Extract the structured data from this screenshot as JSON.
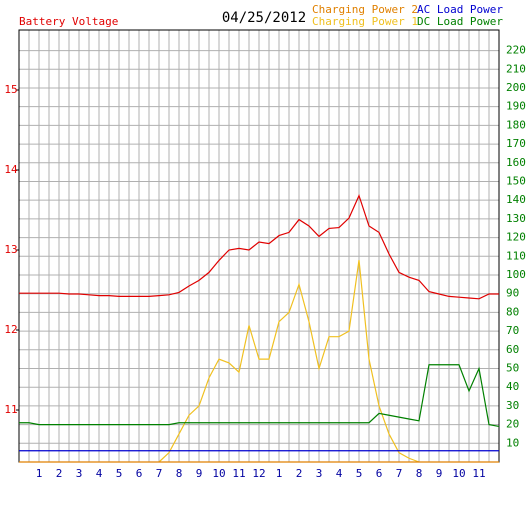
{
  "chart_data": {
    "type": "line",
    "title": "04/25/2012",
    "y_label": "Battery Voltage",
    "x": [
      0,
      0.5,
      1,
      1.5,
      2,
      2.5,
      3,
      3.5,
      4,
      4.5,
      5,
      5.5,
      6,
      6.5,
      7,
      7.5,
      8,
      8.5,
      9,
      9.5,
      10,
      10.5,
      11,
      11.5,
      12,
      12.5,
      13,
      13.5,
      14,
      14.5,
      15,
      15.5,
      16,
      16.5,
      17,
      17.5,
      18,
      18.5,
      19,
      19.5,
      20,
      20.5,
      21,
      21.5,
      22,
      22.5,
      23,
      23.5,
      24
    ],
    "xlim": [
      0,
      24
    ],
    "xticks": [
      1,
      2,
      3,
      4,
      5,
      6,
      7,
      8,
      9,
      10,
      11,
      12,
      {
        "value": 13,
        "label": "1"
      },
      {
        "value": 14,
        "label": "2"
      },
      {
        "value": 15,
        "label": "3"
      },
      {
        "value": 16,
        "label": "4"
      },
      {
        "value": 17,
        "label": "5"
      },
      {
        "value": 18,
        "label": "6"
      },
      {
        "value": 19,
        "label": "7"
      },
      {
        "value": 20,
        "label": "8"
      },
      {
        "value": 21,
        "label": "9"
      },
      {
        "value": 22,
        "label": "10"
      },
      {
        "value": 23,
        "label": "11"
      }
    ],
    "ylim": [
      10.35,
      15.75
    ],
    "yticks": [
      11,
      12,
      13,
      14,
      15
    ],
    "y2lim": [
      0,
      231
    ],
    "y2ticks": [
      10,
      20,
      30,
      40,
      50,
      60,
      70,
      80,
      90,
      100,
      110,
      120,
      130,
      140,
      150,
      160,
      170,
      180,
      190,
      200,
      210,
      220
    ],
    "grid": true,
    "series": [
      {
        "name": "Battery Voltage",
        "color": "#e00000",
        "axis": "y",
        "values": [
          12.46,
          12.46,
          12.46,
          12.46,
          12.46,
          12.45,
          12.45,
          12.44,
          12.43,
          12.43,
          12.42,
          12.42,
          12.42,
          12.42,
          12.43,
          12.44,
          12.47,
          12.55,
          12.62,
          12.72,
          12.87,
          13.0,
          13.02,
          13.0,
          13.1,
          13.08,
          13.18,
          13.22,
          13.38,
          13.3,
          13.17,
          13.27,
          13.28,
          13.4,
          13.68,
          13.3,
          13.22,
          12.95,
          12.72,
          12.66,
          12.62,
          12.48,
          12.45,
          12.42,
          12.41,
          12.4,
          12.39,
          12.45,
          12.45
        ]
      },
      {
        "name": "Charging Power 1",
        "color": "#f0c020",
        "axis": "y2",
        "values": [
          null,
          null,
          null,
          null,
          null,
          null,
          null,
          null,
          null,
          null,
          null,
          null,
          null,
          null,
          0,
          5,
          15,
          25,
          30,
          45,
          55,
          53,
          48,
          73,
          55,
          55,
          75,
          80,
          95,
          75,
          50,
          67,
          67,
          70,
          108,
          55,
          30,
          15,
          5,
          2,
          0,
          null,
          null,
          null,
          null,
          null,
          null,
          null,
          null
        ]
      },
      {
        "name": "Charging Power 2",
        "color": "#e08000",
        "axis": "y2",
        "values": [
          0,
          0,
          0,
          0,
          0,
          0,
          0,
          0,
          0,
          0,
          0,
          0,
          0,
          0,
          0,
          0,
          0,
          0,
          0,
          0,
          0,
          0,
          0,
          0,
          0,
          0,
          0,
          0,
          0,
          0,
          0,
          0,
          0,
          0,
          0,
          0,
          0,
          0,
          0,
          0,
          0,
          0,
          0,
          0,
          0,
          0,
          0,
          0,
          0
        ]
      },
      {
        "name": "AC Load Power",
        "color": "#0000d0",
        "axis": "y2",
        "values": [
          6,
          6,
          6,
          6,
          6,
          6,
          6,
          6,
          6,
          6,
          6,
          6,
          6,
          6,
          6,
          6,
          6,
          6,
          6,
          6,
          6,
          6,
          6,
          6,
          6,
          6,
          6,
          6,
          6,
          6,
          6,
          6,
          6,
          6,
          6,
          6,
          6,
          6,
          6,
          6,
          6,
          6,
          6,
          6,
          6,
          6,
          6,
          6,
          6
        ]
      },
      {
        "name": "DC Load Power",
        "color": "#008000",
        "axis": "y2",
        "values": [
          21,
          21,
          20,
          20,
          20,
          20,
          20,
          20,
          20,
          20,
          20,
          20,
          20,
          20,
          20,
          20,
          21,
          21,
          21,
          21,
          21,
          21,
          21,
          21,
          21,
          21,
          21,
          21,
          21,
          21,
          21,
          21,
          21,
          21,
          21,
          21,
          26,
          25,
          24,
          23,
          22,
          52,
          52,
          52,
          52,
          38,
          50,
          20,
          19
        ]
      }
    ]
  }
}
